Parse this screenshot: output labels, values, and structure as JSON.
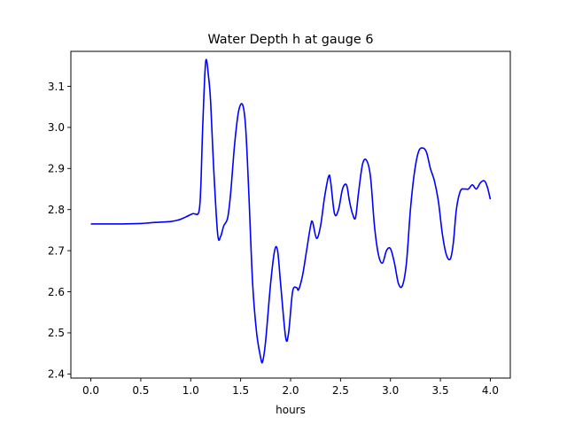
{
  "chart_data": {
    "type": "line",
    "title": "Water Depth h at gauge 6",
    "xlabel": "hours",
    "ylabel": "",
    "xlim": [
      -0.2,
      4.2
    ],
    "ylim": [
      2.39,
      3.185
    ],
    "grid": false,
    "xticks": [
      0.0,
      0.5,
      1.0,
      1.5,
      2.0,
      2.5,
      3.0,
      3.5,
      4.0
    ],
    "xtick_labels": [
      "0.0",
      "0.5",
      "1.0",
      "1.5",
      "2.0",
      "2.5",
      "3.0",
      "3.5",
      "4.0"
    ],
    "yticks": [
      2.4,
      2.5,
      2.6,
      2.7,
      2.8,
      2.9,
      3.0,
      3.1
    ],
    "ytick_labels": [
      "2.4",
      "2.5",
      "2.6",
      "2.7",
      "2.8",
      "2.9",
      "3.0",
      "3.1"
    ],
    "series": [
      {
        "color": "#0000ff",
        "x": [
          0.0,
          0.3,
          0.5,
          0.6,
          0.8,
          0.88,
          0.95,
          1.02,
          1.08,
          1.1,
          1.12,
          1.15,
          1.18,
          1.2,
          1.23,
          1.27,
          1.3,
          1.33,
          1.37,
          1.4,
          1.44,
          1.48,
          1.52,
          1.55,
          1.58,
          1.62,
          1.66,
          1.7,
          1.72,
          1.75,
          1.8,
          1.84,
          1.87,
          1.9,
          1.95,
          1.98,
          2.02,
          2.06,
          2.08,
          2.12,
          2.16,
          2.2,
          2.22,
          2.26,
          2.3,
          2.34,
          2.38,
          2.4,
          2.44,
          2.48,
          2.52,
          2.56,
          2.59,
          2.62,
          2.65,
          2.68,
          2.72,
          2.76,
          2.8,
          2.84,
          2.88,
          2.92,
          2.96,
          3.0,
          3.04,
          3.08,
          3.12,
          3.16,
          3.2,
          3.24,
          3.28,
          3.32,
          3.36,
          3.4,
          3.44,
          3.48,
          3.52,
          3.56,
          3.6,
          3.63,
          3.66,
          3.7,
          3.74,
          3.78,
          3.82,
          3.86,
          3.9,
          3.94,
          3.97,
          4.0
        ],
        "y": [
          2.765,
          2.765,
          2.766,
          2.768,
          2.771,
          2.775,
          2.782,
          2.79,
          2.793,
          2.85,
          3.0,
          3.16,
          3.12,
          3.06,
          2.9,
          2.74,
          2.735,
          2.76,
          2.78,
          2.84,
          2.96,
          3.04,
          3.055,
          3.0,
          2.85,
          2.62,
          2.5,
          2.44,
          2.43,
          2.48,
          2.62,
          2.7,
          2.7,
          2.62,
          2.49,
          2.5,
          2.6,
          2.61,
          2.605,
          2.64,
          2.7,
          2.76,
          2.77,
          2.73,
          2.76,
          2.83,
          2.88,
          2.87,
          2.79,
          2.8,
          2.85,
          2.86,
          2.82,
          2.79,
          2.78,
          2.84,
          2.91,
          2.92,
          2.88,
          2.76,
          2.69,
          2.67,
          2.7,
          2.705,
          2.67,
          2.62,
          2.615,
          2.67,
          2.8,
          2.89,
          2.94,
          2.95,
          2.94,
          2.9,
          2.87,
          2.82,
          2.74,
          2.69,
          2.68,
          2.72,
          2.8,
          2.845,
          2.85,
          2.85,
          2.86,
          2.85,
          2.865,
          2.87,
          2.855,
          2.825
        ]
      }
    ]
  }
}
